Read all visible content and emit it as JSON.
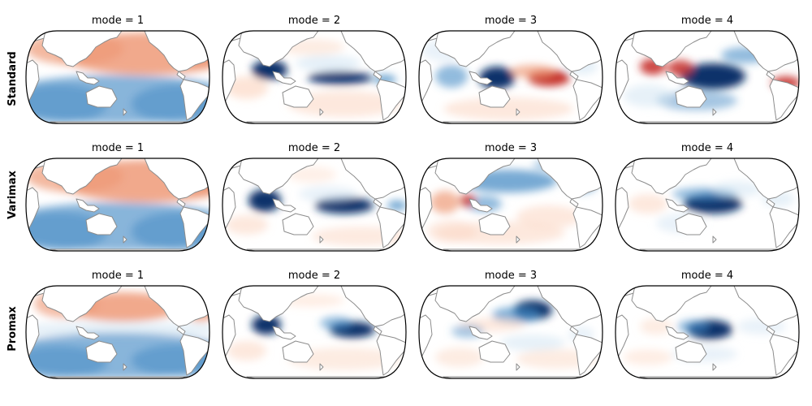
{
  "figure": {
    "rows": [
      {
        "label": "Standard"
      },
      {
        "label": "Varimax"
      },
      {
        "label": "Promax"
      }
    ],
    "panel_titles": [
      "mode = 1",
      "mode = 2",
      "mode = 3",
      "mode = 4"
    ],
    "colormap": "RdBu_r",
    "colors": {
      "strong_negative": "#08306b",
      "negative": "#4a8ec6",
      "weak_negative": "#d4e6f3",
      "neutral": "#ffffff",
      "weak_positive": "#fcd9c6",
      "positive": "#ee9a78",
      "strong_positive": "#c6302b",
      "coastline": "#8c8c8c",
      "map_outline": "#000000"
    }
  }
}
